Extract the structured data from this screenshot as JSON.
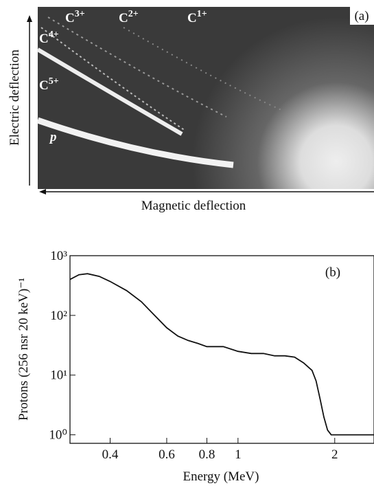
{
  "chart_data": [
    {
      "type": "image",
      "panel_label": "(a)",
      "xlabel": "Magnetic deflection",
      "ylabel": "Electric deflection",
      "annotations": [
        {
          "element": "C",
          "charge": "3+"
        },
        {
          "element": "C",
          "charge": "2+"
        },
        {
          "element": "C",
          "charge": "1+"
        },
        {
          "element": "C",
          "charge": "4+"
        },
        {
          "element": "C",
          "charge": "5+"
        },
        {
          "element": "p"
        }
      ]
    },
    {
      "type": "line",
      "panel_label": "(b)",
      "xlabel": "Energy  (MeV)",
      "ylabel": "Protons (256 nsr 20  keV)⁻¹",
      "xlog": true,
      "ylog": true,
      "color": "#111111",
      "xlim": [
        0.3,
        2.65
      ],
      "ylim": [
        0.72,
        1000
      ],
      "xticks": [
        0.4,
        0.6,
        0.8,
        1,
        2
      ],
      "yticks": [
        {
          "value": 1,
          "label": "10⁰"
        },
        {
          "value": 10,
          "label": "10¹"
        },
        {
          "value": 100,
          "label": "10²"
        },
        {
          "value": 1000,
          "label": "10³"
        }
      ],
      "x": [
        0.3,
        0.32,
        0.34,
        0.37,
        0.4,
        0.45,
        0.5,
        0.55,
        0.6,
        0.65,
        0.7,
        0.75,
        0.8,
        0.9,
        1.0,
        1.1,
        1.2,
        1.3,
        1.4,
        1.5,
        1.6,
        1.7,
        1.75,
        1.8,
        1.85,
        1.9,
        1.95,
        2.0,
        2.65
      ],
      "values": [
        400,
        480,
        500,
        450,
        370,
        260,
        170,
        100,
        62,
        45,
        38,
        34,
        30,
        30,
        25,
        23,
        23,
        21,
        21,
        20,
        16,
        12,
        8,
        4,
        2,
        1.2,
        1.0,
        1.0,
        1.0
      ]
    }
  ]
}
